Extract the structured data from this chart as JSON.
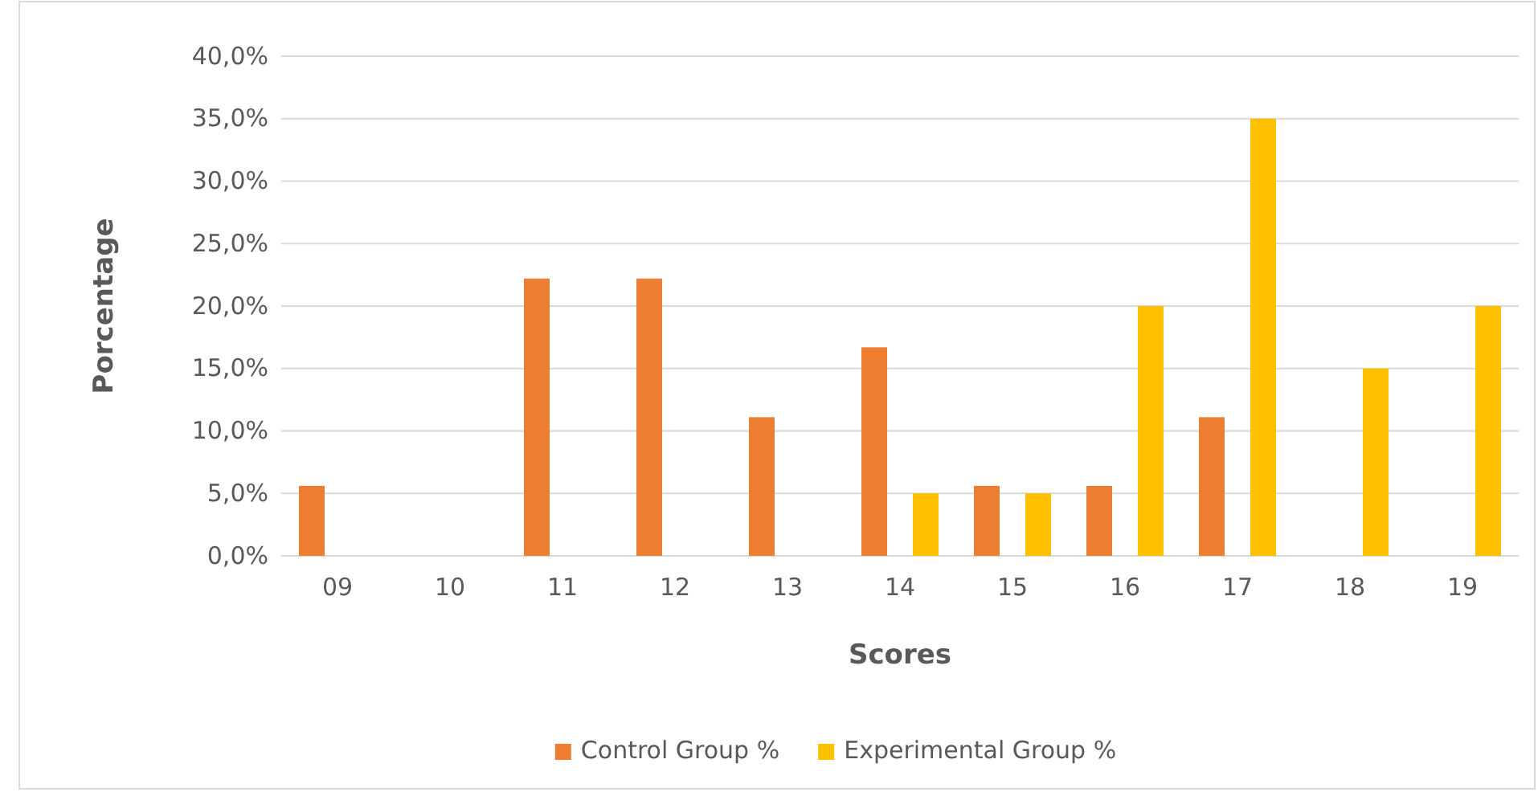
{
  "chart_data": {
    "type": "bar",
    "xlabel": "Scores",
    "ylabel": "Porcentage",
    "categories": [
      "09",
      "10",
      "11",
      "12",
      "13",
      "14",
      "15",
      "16",
      "17",
      "18",
      "19"
    ],
    "series": [
      {
        "name": "Control Group %",
        "color": "#ed7d31",
        "values": [
          5.6,
          0,
          22.2,
          22.2,
          11.1,
          16.7,
          5.6,
          5.6,
          11.1,
          0,
          0
        ]
      },
      {
        "name": "Experimental Group %",
        "color": "#ffc000",
        "values": [
          0,
          0,
          0,
          0,
          0,
          5,
          5,
          20,
          35,
          15,
          20
        ]
      }
    ],
    "ylim": [
      0,
      40
    ],
    "yticks": [
      {
        "value": 0,
        "label": "0,0%"
      },
      {
        "value": 5,
        "label": "5,0%"
      },
      {
        "value": 10,
        "label": "10,0%"
      },
      {
        "value": 15,
        "label": "15,0%"
      },
      {
        "value": 20,
        "label": "20,0%"
      },
      {
        "value": 25,
        "label": "25,0%"
      },
      {
        "value": 30,
        "label": "30,0%"
      },
      {
        "value": 35,
        "label": "35,0%"
      },
      {
        "value": 40,
        "label": "40,0%"
      }
    ],
    "grid": "y",
    "legend": "bottom"
  }
}
